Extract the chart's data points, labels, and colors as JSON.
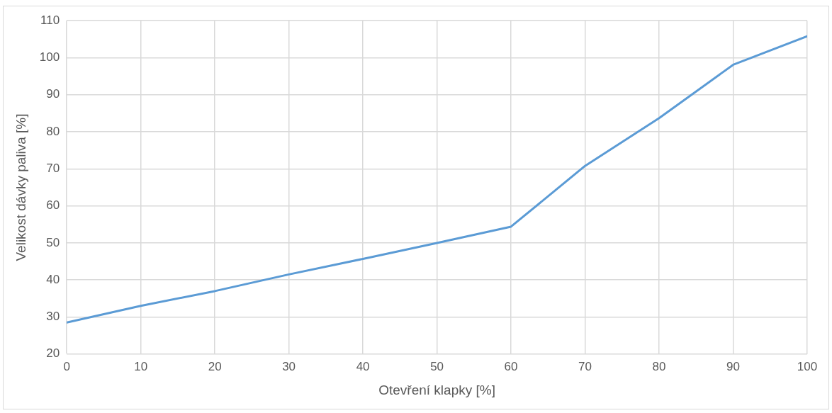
{
  "chart_data": {
    "type": "line",
    "xlabel": "Otevření klapky [%]",
    "ylabel": "Velikost dávky paliva [%]",
    "x": [
      0,
      10,
      20,
      30,
      40,
      50,
      60,
      70,
      80,
      90,
      100
    ],
    "series": [
      {
        "color": "#5b9bd5",
        "values": [
          28.5,
          33,
          37,
          41.5,
          45.7,
          50,
          54.4,
          70.8,
          83.7,
          98.1,
          105.8
        ]
      }
    ],
    "xlim": [
      0,
      100
    ],
    "xticks": [
      0,
      10,
      20,
      30,
      40,
      50,
      60,
      70,
      80,
      90,
      100
    ],
    "ylim": [
      20,
      110
    ],
    "yticks": [
      20,
      30,
      40,
      50,
      60,
      70,
      80,
      90,
      100,
      110
    ],
    "grid": true,
    "legend": false,
    "marker": "none",
    "line_style": "solid"
  }
}
